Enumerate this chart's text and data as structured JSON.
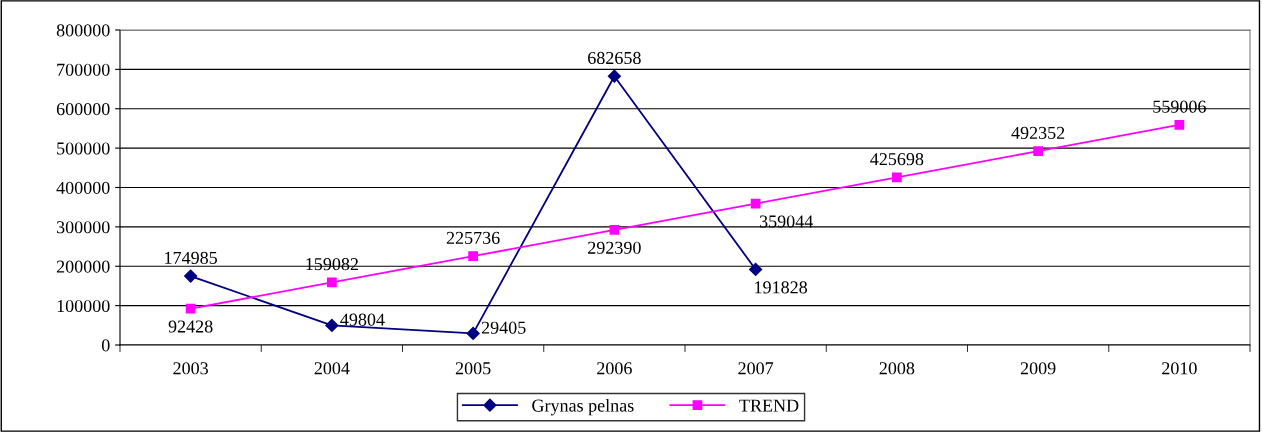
{
  "chart_data": {
    "type": "line",
    "categories": [
      "2003",
      "2004",
      "2005",
      "2006",
      "2007",
      "2008",
      "2009",
      "2010"
    ],
    "series": [
      {
        "name": "Grynas pelnas",
        "color": "#000080",
        "marker": "diamond",
        "values": [
          174985,
          49804,
          29405,
          682658,
          191828,
          null,
          null,
          null
        ]
      },
      {
        "name": "TREND",
        "color": "#ff00ff",
        "marker": "square",
        "values": [
          92428,
          159082,
          225736,
          292390,
          359044,
          425698,
          492352,
          559006
        ]
      }
    ],
    "ylim": [
      0,
      800000
    ],
    "yticks": [
      0,
      100000,
      200000,
      300000,
      400000,
      500000,
      600000,
      700000,
      800000
    ],
    "grid": "y",
    "legend": "bottom",
    "data_labels": true,
    "line_style": "solid"
  }
}
